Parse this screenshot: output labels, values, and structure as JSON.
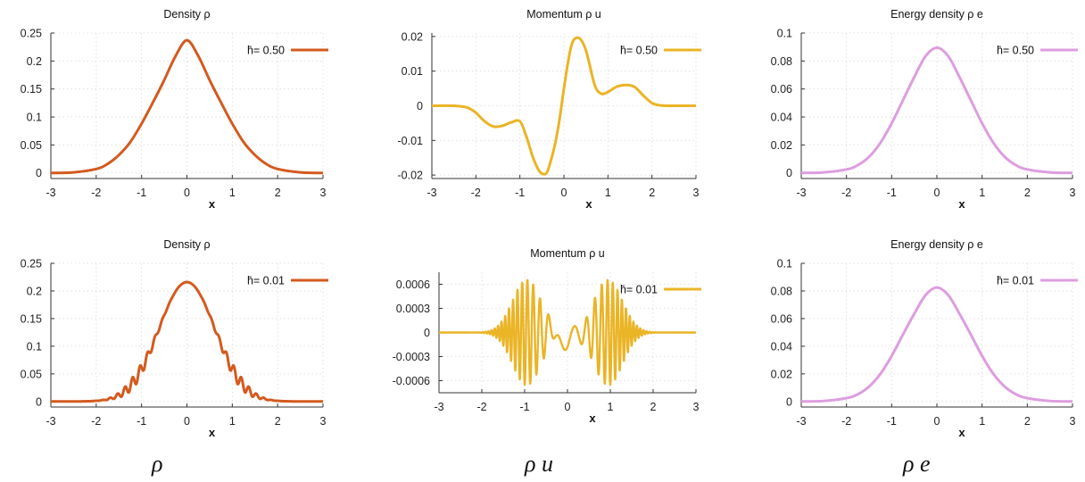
{
  "captions": [
    "ρ",
    "ρ u",
    "ρ e"
  ],
  "colors": {
    "density": "#d35a1f",
    "momentum": "#eab426",
    "energy": "#dd9ddf"
  },
  "chart_data": [
    {
      "type": "line",
      "title": "Density ρ",
      "xlabel": "x",
      "legend": "h̄= 0.50",
      "legend_placement": "top-right",
      "xlim": [
        -3,
        3
      ],
      "ylim": [
        -0.01,
        0.25
      ],
      "xticks": [
        "-3",
        "-2",
        "-1",
        "0",
        "1",
        "2",
        "3"
      ],
      "yticks": [
        "0",
        "0.05",
        "0.1",
        "0.15",
        "0.2",
        "0.25"
      ],
      "series": [
        {
          "x": [
            -3,
            -2.5,
            -2,
            -1.75,
            -1.5,
            -1.25,
            -1,
            -0.75,
            -0.5,
            -0.25,
            0,
            0.25,
            0.5,
            0.75,
            1,
            1.25,
            1.5,
            1.75,
            2,
            2.5,
            3
          ],
          "y": [
            0,
            0.001,
            0.007,
            0.016,
            0.032,
            0.055,
            0.088,
            0.126,
            0.166,
            0.209,
            0.237,
            0.209,
            0.166,
            0.126,
            0.088,
            0.055,
            0.032,
            0.016,
            0.007,
            0.001,
            0
          ]
        }
      ]
    },
    {
      "type": "line",
      "title": "Momentum ρ u",
      "xlabel": "x",
      "legend": "h̄= 0.50",
      "legend_placement": "top-right",
      "xlim": [
        -3,
        3
      ],
      "ylim": [
        -0.021,
        0.021
      ],
      "xticks": [
        "-3",
        "-2",
        "-1",
        "0",
        "1",
        "2",
        "3"
      ],
      "yticks": [
        "-0.02",
        "-0.01",
        "0",
        "0.01",
        "0.02"
      ],
      "series": [
        {
          "x": [
            -3,
            -2.5,
            -2.2,
            -2,
            -1.8,
            -1.6,
            -1.4,
            -1.2,
            -1,
            -0.85,
            -0.7,
            -0.55,
            -0.4,
            -0.3,
            -0.2,
            -0.1,
            0,
            0.1,
            0.2,
            0.35,
            0.5,
            0.7,
            0.85,
            1,
            1.2,
            1.4,
            1.6,
            1.8,
            2,
            2.2,
            2.5,
            3
          ],
          "y": [
            0,
            0,
            -0.0005,
            -0.002,
            -0.0045,
            -0.006,
            -0.0058,
            -0.0048,
            -0.0045,
            -0.009,
            -0.015,
            -0.019,
            -0.0195,
            -0.016,
            -0.011,
            -0.004,
            0.005,
            0.013,
            0.0185,
            0.0195,
            0.016,
            0.006,
            0.0035,
            0.004,
            0.0055,
            0.006,
            0.0055,
            0.003,
            0.0008,
            0.0001,
            0,
            0
          ]
        }
      ]
    },
    {
      "type": "line",
      "title": "Energy density ρ e",
      "xlabel": "x",
      "legend": "h̄= 0.50",
      "legend_placement": "top-right",
      "xlim": [
        -3,
        3
      ],
      "ylim": [
        -0.004,
        0.1
      ],
      "xticks": [
        "-3",
        "-2",
        "-1",
        "0",
        "1",
        "2",
        "3"
      ],
      "yticks": [
        "0",
        "0.02",
        "0.04",
        "0.06",
        "0.08",
        "0.1"
      ],
      "series": [
        {
          "x": [
            -3,
            -2.5,
            -2,
            -1.75,
            -1.5,
            -1.25,
            -1,
            -0.75,
            -0.5,
            -0.25,
            0,
            0.25,
            0.5,
            0.75,
            1,
            1.25,
            1.5,
            1.75,
            2,
            2.5,
            3
          ],
          "y": [
            0,
            0.0004,
            0.0025,
            0.0055,
            0.0115,
            0.0215,
            0.0355,
            0.052,
            0.0685,
            0.0835,
            0.0895,
            0.0835,
            0.0685,
            0.052,
            0.0355,
            0.0215,
            0.0115,
            0.0055,
            0.0025,
            0.0004,
            0
          ]
        }
      ]
    },
    {
      "type": "line",
      "title": "Density ρ",
      "xlabel": "x",
      "legend": "h̄= 0.01",
      "legend_placement": "top-right",
      "xlim": [
        -3,
        3
      ],
      "ylim": [
        -0.01,
        0.25
      ],
      "xticks": [
        "-3",
        "-2",
        "-1",
        "0",
        "1",
        "2",
        "3"
      ],
      "yticks": [
        "0",
        "0.05",
        "0.1",
        "0.15",
        "0.2",
        "0.25"
      ],
      "series": [
        {
          "x": [
            -3,
            -2.5,
            -2,
            -1.8,
            -1.6,
            -1.4,
            -1.2,
            -1.0,
            -0.8,
            -0.6,
            -0.4,
            -0.2,
            0,
            0.2,
            0.4,
            0.6,
            0.8,
            1.0,
            1.2,
            1.4,
            1.6,
            1.8,
            2,
            2.5,
            3
          ],
          "y": [
            0,
            0.0005,
            0.004,
            0.009,
            0.018,
            0.035,
            0.062,
            0.088,
            0.144,
            0.169,
            0.19,
            0.205,
            0.216,
            0.205,
            0.19,
            0.169,
            0.144,
            0.088,
            0.062,
            0.035,
            0.018,
            0.009,
            0.004,
            0.0005,
            0
          ]
        }
      ]
    },
    {
      "type": "line",
      "title": "Momentum ρ u",
      "xlabel": "x",
      "legend": "h̄= 0.01",
      "legend_placement": "top-right",
      "xlim": [
        -3,
        3
      ],
      "ylim": [
        -0.00075,
        0.00075
      ],
      "xticks": [
        "-3",
        "-2",
        "-1",
        "0",
        "1",
        "2",
        "3"
      ],
      "yticks": [
        "-0.0006",
        "-0.0003",
        "0",
        "0.0003",
        "0.0006"
      ],
      "series": [
        {
          "x": [
            -3,
            -2.5,
            -2,
            -1.5,
            -1,
            -0.5,
            -0.35,
            -0.2,
            0,
            0.2,
            0.35,
            0.5,
            1,
            1.5,
            2,
            2.5,
            3
          ],
          "y": [
            0,
            0,
            5e-05,
            0.0003,
            0.00066,
            0.0003,
            0.00012,
            -0.0001,
            -0.00018,
            0.00013,
            0.0001,
            0.0004,
            0.00065,
            0.00035,
            6e-05,
            0,
            0
          ]
        }
      ]
    },
    {
      "type": "line",
      "title": "Energy density ρ e",
      "xlabel": "x",
      "legend": "h̄= 0.01",
      "legend_placement": "top-right",
      "xlim": [
        -3,
        3
      ],
      "ylim": [
        -0.004,
        0.1
      ],
      "xticks": [
        "-3",
        "-2",
        "-1",
        "0",
        "1",
        "2",
        "3"
      ],
      "yticks": [
        "0",
        "0.02",
        "0.04",
        "0.06",
        "0.08",
        "0.1"
      ],
      "series": [
        {
          "x": [
            -3,
            -2.5,
            -2,
            -1.75,
            -1.5,
            -1.25,
            -1,
            -0.75,
            -0.5,
            -0.25,
            0,
            0.25,
            0.5,
            0.75,
            1,
            1.25,
            1.5,
            1.75,
            2,
            2.5,
            3
          ],
          "y": [
            0,
            0.0004,
            0.0024,
            0.0052,
            0.0108,
            0.02,
            0.033,
            0.0485,
            0.0635,
            0.077,
            0.0825,
            0.077,
            0.0635,
            0.0485,
            0.033,
            0.02,
            0.0108,
            0.0052,
            0.0024,
            0.0004,
            0
          ]
        }
      ]
    }
  ]
}
